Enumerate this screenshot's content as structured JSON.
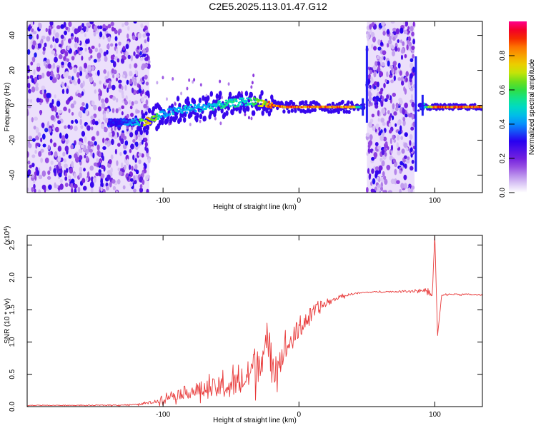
{
  "title": "C2E5.2025.113.01.47.G12",
  "chart_data": [
    {
      "type": "heatmap",
      "title": "C2E5.2025.113.01.47.G12",
      "xlabel": "Height of straight line (km)",
      "ylabel": "Frequency (Hz)",
      "xlim": [
        -200,
        135
      ],
      "ylim": [
        -50,
        48
      ],
      "xticks": [
        -100,
        0,
        100
      ],
      "yticks": [
        -40,
        -20,
        0,
        20,
        40
      ],
      "colorbar": {
        "label": "Normalized spectral amplitude",
        "range": [
          0,
          1
        ],
        "ticks": [
          0.0,
          0.2,
          0.4,
          0.6,
          0.8
        ],
        "colormap": "rainbow"
      },
      "ridge": {
        "x": [
          -140,
          -130,
          -120,
          -110,
          -100,
          -90,
          -80,
          -70,
          -60,
          -50,
          -40,
          -30,
          -20,
          -10,
          0,
          10,
          20,
          30,
          40,
          45,
          48,
          88,
          92,
          100,
          110,
          120,
          135
        ],
        "y": [
          -10,
          -10,
          -9.5,
          -9,
          -5,
          -3,
          -2,
          -1,
          0,
          1,
          2,
          2,
          0,
          -1,
          -1,
          -1,
          -1,
          -1,
          -1,
          -1,
          -1,
          -1,
          -1,
          -1,
          -1,
          -1,
          -1
        ],
        "amplitude": [
          0.35,
          0.4,
          0.5,
          0.9,
          0.45,
          0.5,
          0.5,
          0.5,
          0.55,
          0.6,
          0.55,
          0.7,
          0.95,
          0.95,
          0.95,
          0.95,
          0.95,
          0.95,
          0.95,
          0.5,
          0.3,
          0.3,
          0.5,
          0.95,
          0.95,
          0.95,
          0.95
        ]
      },
      "noise_bands": [
        {
          "x": [
            -200,
            -110
          ],
          "amplitude": "low-medium"
        },
        {
          "x": [
            50,
            85
          ],
          "amplitude": "low-medium"
        }
      ]
    },
    {
      "type": "line",
      "xlabel": "Height of straight line (km)",
      "ylabel": "SNR (10 * v/v)",
      "multiplier": "(x10",
      "multiplier_exp": "4",
      "xlim": [
        -200,
        135
      ],
      "ylim": [
        0,
        2.65
      ],
      "xticks": [
        -100,
        0,
        100
      ],
      "yticks": [
        0.0,
        0.5,
        1.0,
        1.5,
        2.0,
        2.5
      ],
      "color": "#e83a3a",
      "series": [
        {
          "x": [
            -200,
            -150,
            -120,
            -105,
            -100,
            -90,
            -80,
            -70,
            -60,
            -50,
            -40,
            -35,
            -30,
            -25,
            -20,
            -15,
            -10,
            -5,
            0,
            5,
            10,
            15,
            20,
            25,
            30,
            40,
            50,
            60,
            70,
            80,
            90,
            95,
            98,
            100,
            102,
            105,
            110,
            120,
            135
          ],
          "y": [
            0.02,
            0.02,
            0.03,
            0.08,
            0.15,
            0.2,
            0.25,
            0.28,
            0.3,
            0.35,
            0.4,
            0.6,
            0.75,
            0.9,
            0.8,
            0.7,
            0.9,
            1.05,
            1.2,
            1.35,
            1.45,
            1.55,
            1.6,
            1.65,
            1.7,
            1.75,
            1.77,
            1.78,
            1.78,
            1.79,
            1.8,
            1.8,
            1.7,
            2.65,
            1.1,
            1.72,
            1.74,
            1.74,
            1.73
          ],
          "noise_amplitude": [
            0.01,
            0.01,
            0.02,
            0.05,
            0.12,
            0.15,
            0.2,
            0.25,
            0.3,
            0.35,
            0.35,
            0.5,
            0.55,
            0.5,
            0.45,
            0.4,
            0.35,
            0.3,
            0.3,
            0.25,
            0.22,
            0.2,
            0.12,
            0.06,
            0.04,
            0.03,
            0.02,
            0.02,
            0.02,
            0.03,
            0.06,
            0.06,
            0.05,
            0.0,
            0.0,
            0.02,
            0.02,
            0.02,
            0.02
          ]
        }
      ]
    }
  ]
}
